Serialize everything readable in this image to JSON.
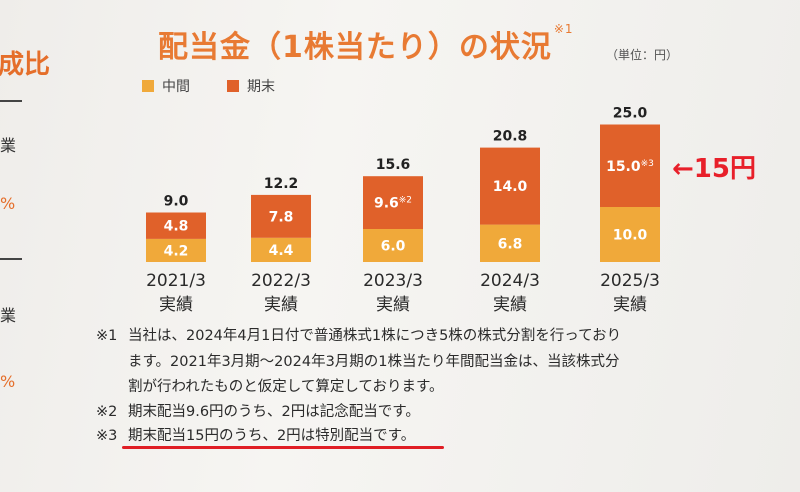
{
  "page_title": "配当金（1株当たり）の状況",
  "title_sup": "※1",
  "unit": "（単位：円）",
  "side_fragments": {
    "heading": "成比",
    "row1": "業",
    "pct1": "%",
    "row2": "業",
    "pct2": "%"
  },
  "legend": [
    {
      "label": "中間",
      "color": "#f0a93a"
    },
    {
      "label": "期末",
      "color": "#e0612a"
    }
  ],
  "chart_data": {
    "type": "bar",
    "stacked": true,
    "categories": [
      "2021/3",
      "2022/3",
      "2023/3",
      "2024/3",
      "2025/3"
    ],
    "category_sublabel": "実績",
    "series": [
      {
        "name": "中間",
        "values": [
          4.2,
          4.4,
          6.0,
          6.8,
          10.0
        ],
        "color": "#f0a93a"
      },
      {
        "name": "期末",
        "values": [
          4.8,
          7.8,
          9.6,
          14.0,
          15.0
        ],
        "color": "#e0612a"
      }
    ],
    "totals": [
      "9.0",
      "12.2",
      "15.6",
      "20.8",
      "25.0"
    ],
    "segment_labels": [
      [
        "4.2",
        "4.4",
        "6.0",
        "6.8",
        "10.0"
      ],
      [
        "4.8",
        "7.8",
        "9.6",
        "14.0",
        "15.0"
      ]
    ],
    "segment_notes": {
      "2023/3": "※2",
      "2025/3": "※3"
    },
    "ylim": [
      0,
      25
    ]
  },
  "notes": [
    {
      "mark": "※1",
      "text": "当社は、2024年4月1日付で普通株式1株につき5株の株式分割を行っており"
    },
    {
      "mark": "",
      "text": "ます。2021年3月期～2024年3月期の1株当たり年間配当金は、当該株式分"
    },
    {
      "mark": "",
      "text": "割が行われたものと仮定して算定しております。"
    },
    {
      "mark": "※2",
      "text": "期末配当9.6円のうち、2円は記念配当です。"
    },
    {
      "mark": "※3",
      "text": "期末配当15円のうち、2円は特別配当です。"
    }
  ],
  "annotation": "←15円"
}
